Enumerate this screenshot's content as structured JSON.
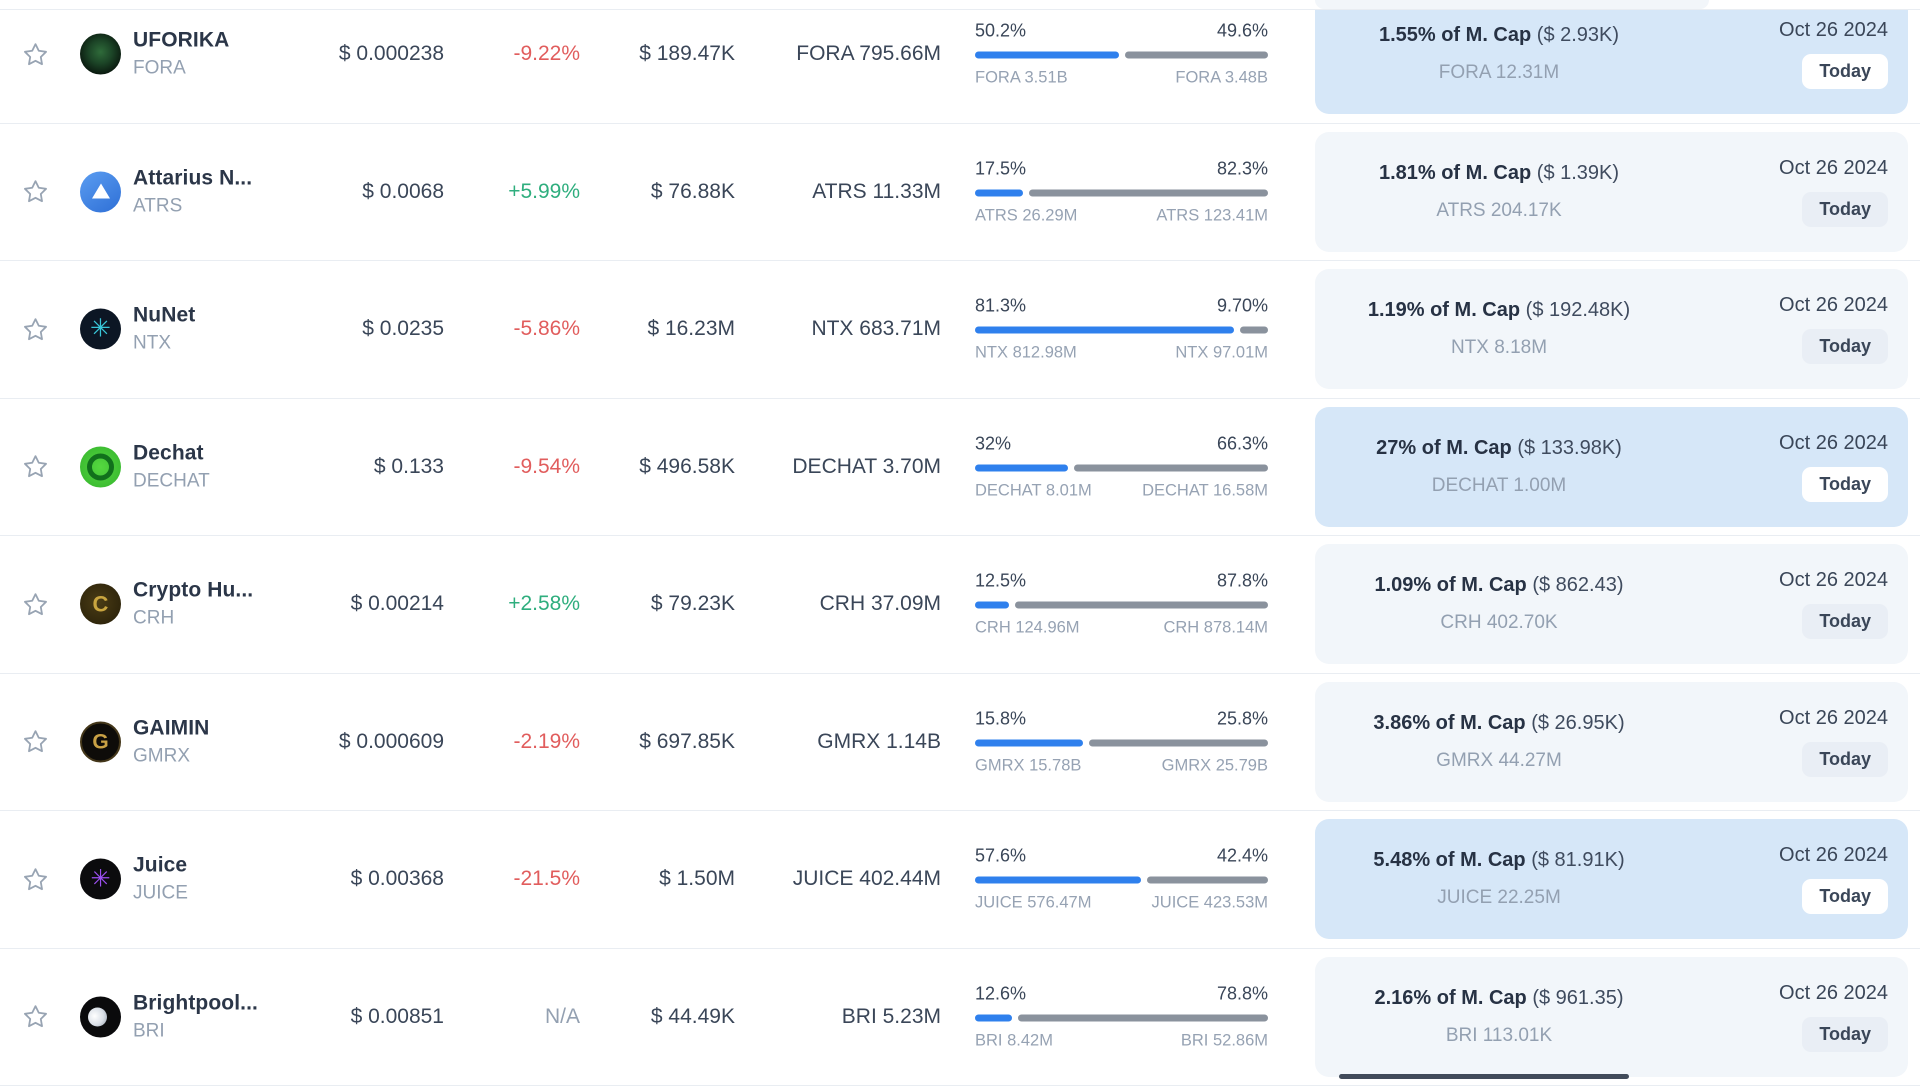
{
  "colors": {
    "accent_blue": "#2f80ed",
    "bar_gray": "#8a929d",
    "positive_green": "#2fae7e",
    "negative_red": "#e15d5d",
    "panel_normal": "#f2f6fa",
    "panel_highlight": "#d6e7f8",
    "divider": "#e9edf2",
    "text_dark": "#3a4658",
    "text_gray": "#93a0b1"
  },
  "table": {
    "rows": [
      {
        "name": "UFORIKA",
        "ticker": "FORA",
        "coin_class": "fora",
        "icon": "uforika-coin-icon",
        "glyph": "",
        "price": "$ 0.000238",
        "change": "-9.22%",
        "change_dir": "neg",
        "volume": "$ 189.47K",
        "supply": "FORA 795.66M",
        "bar": {
          "left_pct": "50.2%",
          "right_pct": "49.6%",
          "left_label": "FORA 3.51B",
          "right_label": "FORA 3.48B",
          "fill_pct": 50.3
        },
        "mcap_main": "1.55% of M. Cap",
        "mcap_paren": "($ 2.93K)",
        "mcap_sub": "FORA 12.31M",
        "date": "Oct 26 2024",
        "badge": "Today",
        "highlighted": true
      },
      {
        "name": "Attarius N...",
        "ticker": "ATRS",
        "coin_class": "atrs",
        "icon": "attarius-coin-icon",
        "glyph": "",
        "price": "$ 0.0068",
        "change": "+5.99%",
        "change_dir": "pos",
        "volume": "$ 76.88K",
        "supply": "ATRS 11.33M",
        "bar": {
          "left_pct": "17.5%",
          "right_pct": "82.3%",
          "left_label": "ATRS 26.29M",
          "right_label": "ATRS 123.41M",
          "fill_pct": 17.5
        },
        "mcap_main": "1.81% of M. Cap",
        "mcap_paren": "($ 1.39K)",
        "mcap_sub": "ATRS 204.17K",
        "date": "Oct 26 2024",
        "badge": "Today",
        "highlighted": false
      },
      {
        "name": "NuNet",
        "ticker": "NTX",
        "coin_class": "ntx",
        "icon": "nunet-coin-icon",
        "glyph": "✳",
        "price": "$ 0.0235",
        "change": "-5.86%",
        "change_dir": "neg",
        "volume": "$ 16.23M",
        "supply": "NTX 683.71M",
        "bar": {
          "left_pct": "81.3%",
          "right_pct": "9.70%",
          "left_label": "NTX 812.98M",
          "right_label": "NTX 97.01M",
          "fill_pct": 89.3
        },
        "mcap_main": "1.19% of M. Cap",
        "mcap_paren": "($ 192.48K)",
        "mcap_sub": "NTX 8.18M",
        "date": "Oct 26 2024",
        "badge": "Today",
        "highlighted": false
      },
      {
        "name": "Dechat",
        "ticker": "DECHAT",
        "coin_class": "dechat",
        "icon": "dechat-coin-icon",
        "glyph": "",
        "price": "$ 0.133",
        "change": "-9.54%",
        "change_dir": "neg",
        "volume": "$ 496.58K",
        "supply": "DECHAT 3.70M",
        "bar": {
          "left_pct": "32%",
          "right_pct": "66.3%",
          "left_label": "DECHAT 8.01M",
          "right_label": "DECHAT 16.58M",
          "fill_pct": 32.6
        },
        "mcap_main": "27% of M. Cap",
        "mcap_paren": "($ 133.98K)",
        "mcap_sub": "DECHAT 1.00M",
        "date": "Oct 26 2024",
        "badge": "Today",
        "highlighted": true
      },
      {
        "name": "Crypto Hu...",
        "ticker": "CRH",
        "coin_class": "crh",
        "icon": "crypto-hub-coin-icon",
        "glyph": "C",
        "price": "$ 0.00214",
        "change": "+2.58%",
        "change_dir": "pos",
        "volume": "$ 79.23K",
        "supply": "CRH 37.09M",
        "bar": {
          "left_pct": "12.5%",
          "right_pct": "87.8%",
          "left_label": "CRH 124.96M",
          "right_label": "CRH 878.14M",
          "fill_pct": 12.5
        },
        "mcap_main": "1.09% of M. Cap",
        "mcap_paren": "($ 862.43)",
        "mcap_sub": "CRH 402.70K",
        "date": "Oct 26 2024",
        "badge": "Today",
        "highlighted": false
      },
      {
        "name": "GAIMIN",
        "ticker": "GMRX",
        "coin_class": "gmrx",
        "icon": "gaimin-coin-icon",
        "glyph": "G",
        "price": "$ 0.000609",
        "change": "-2.19%",
        "change_dir": "neg",
        "volume": "$ 697.85K",
        "supply": "GMRX 1.14B",
        "bar": {
          "left_pct": "15.8%",
          "right_pct": "25.8%",
          "left_label": "GMRX 15.78B",
          "right_label": "GMRX 25.79B",
          "fill_pct": 38.0
        },
        "mcap_main": "3.86% of M. Cap",
        "mcap_paren": "($ 26.95K)",
        "mcap_sub": "GMRX 44.27M",
        "date": "Oct 26 2024",
        "badge": "Today",
        "highlighted": false
      },
      {
        "name": "Juice",
        "ticker": "JUICE",
        "coin_class": "juice",
        "icon": "juice-coin-icon",
        "glyph": "✳",
        "price": "$ 0.00368",
        "change": "-21.5%",
        "change_dir": "neg",
        "volume": "$ 1.50M",
        "supply": "JUICE 402.44M",
        "bar": {
          "left_pct": "57.6%",
          "right_pct": "42.4%",
          "left_label": "JUICE 576.47M",
          "right_label": "JUICE 423.53M",
          "fill_pct": 57.6
        },
        "mcap_main": "5.48% of M. Cap",
        "mcap_paren": "($ 81.91K)",
        "mcap_sub": "JUICE 22.25M",
        "date": "Oct 26 2024",
        "badge": "Today",
        "highlighted": true
      },
      {
        "name": "Brightpool...",
        "ticker": "BRI",
        "coin_class": "bri",
        "icon": "brightpool-coin-icon",
        "glyph": "",
        "price": "$ 0.00851",
        "change": "N/A",
        "change_dir": "na",
        "volume": "$ 44.49K",
        "supply": "BRI 5.23M",
        "bar": {
          "left_pct": "12.6%",
          "right_pct": "78.8%",
          "left_label": "BRI 8.42M",
          "right_label": "BRI 52.86M",
          "fill_pct": 13.8
        },
        "mcap_main": "2.16% of M. Cap",
        "mcap_paren": "($ 961.35)",
        "mcap_sub": "BRI 113.01K",
        "date": "Oct 26 2024",
        "badge": "Today",
        "highlighted": false
      }
    ]
  }
}
